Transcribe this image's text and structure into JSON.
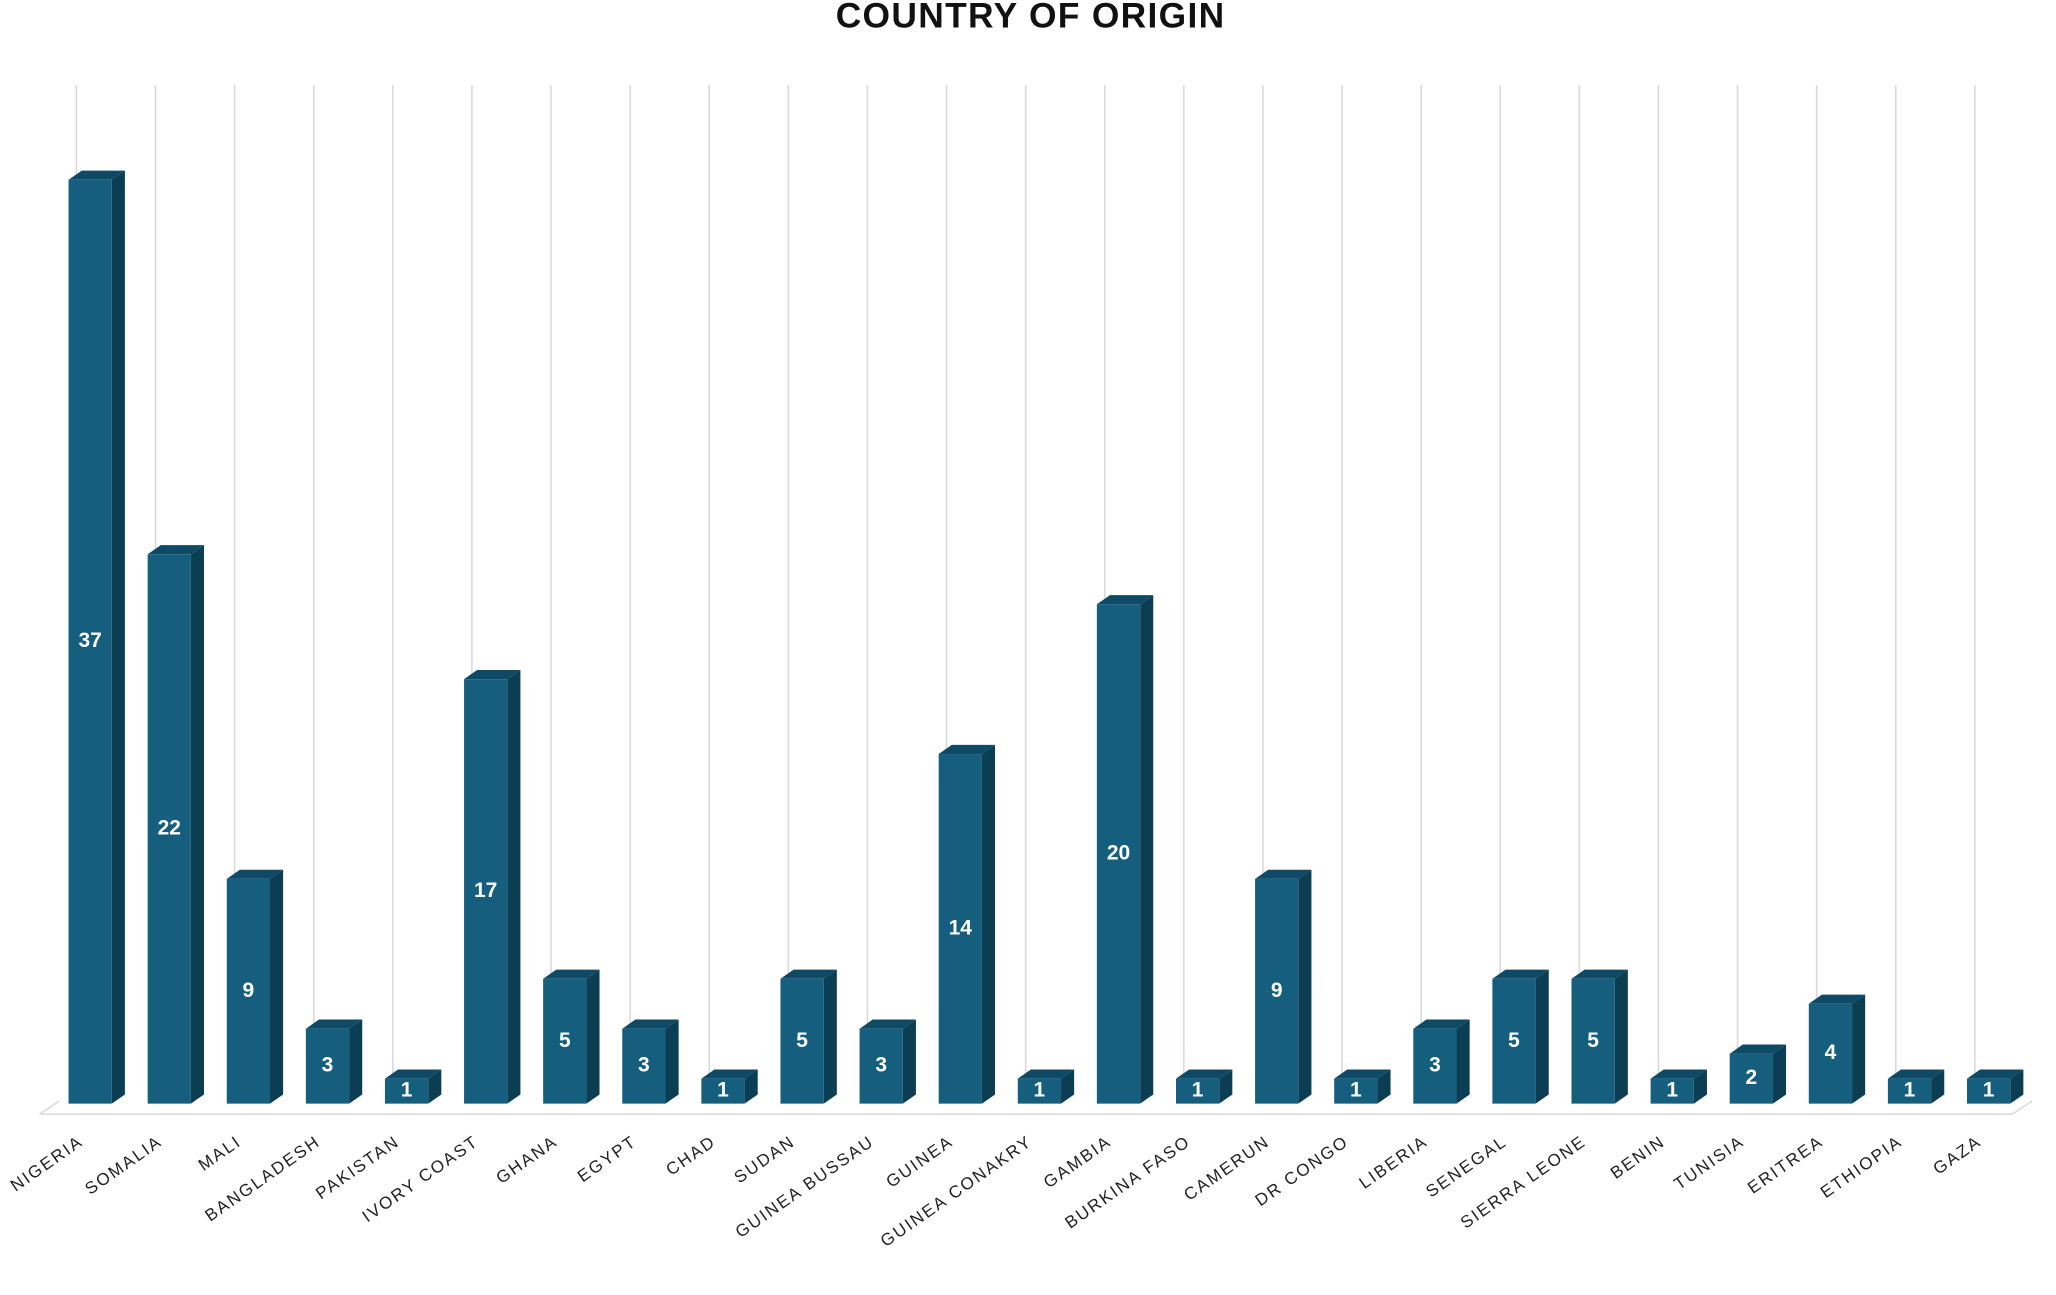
{
  "chart_data": {
    "type": "bar3d",
    "title": "COUNTRY OF ORIGIN",
    "categories": [
      "NIGERIA",
      "SOMALIA",
      "MALI",
      "BANGLADESH",
      "PAKISTAN",
      "IVORY COAST",
      "GHANA",
      "EGYPT",
      "CHAD",
      "SUDAN",
      "GUINEA BUSSAU",
      "GUINEA",
      "GUINEA CONAKRY",
      "GAMBIA",
      "BURKINA FASO",
      "CAMERUN",
      "DR CONGO",
      "LIBERIA",
      "SENEGAL",
      "SIERRA LEONE",
      "BENIN",
      "TUNISIA",
      "ERITREA",
      "ETHIOPIA",
      "GAZA"
    ],
    "values": [
      37,
      22,
      9,
      3,
      1,
      17,
      5,
      3,
      1,
      5,
      3,
      14,
      1,
      20,
      1,
      9,
      1,
      3,
      5,
      5,
      1,
      2,
      4,
      1,
      1
    ],
    "color": "#155e7e",
    "ylim": [
      0,
      40
    ]
  }
}
